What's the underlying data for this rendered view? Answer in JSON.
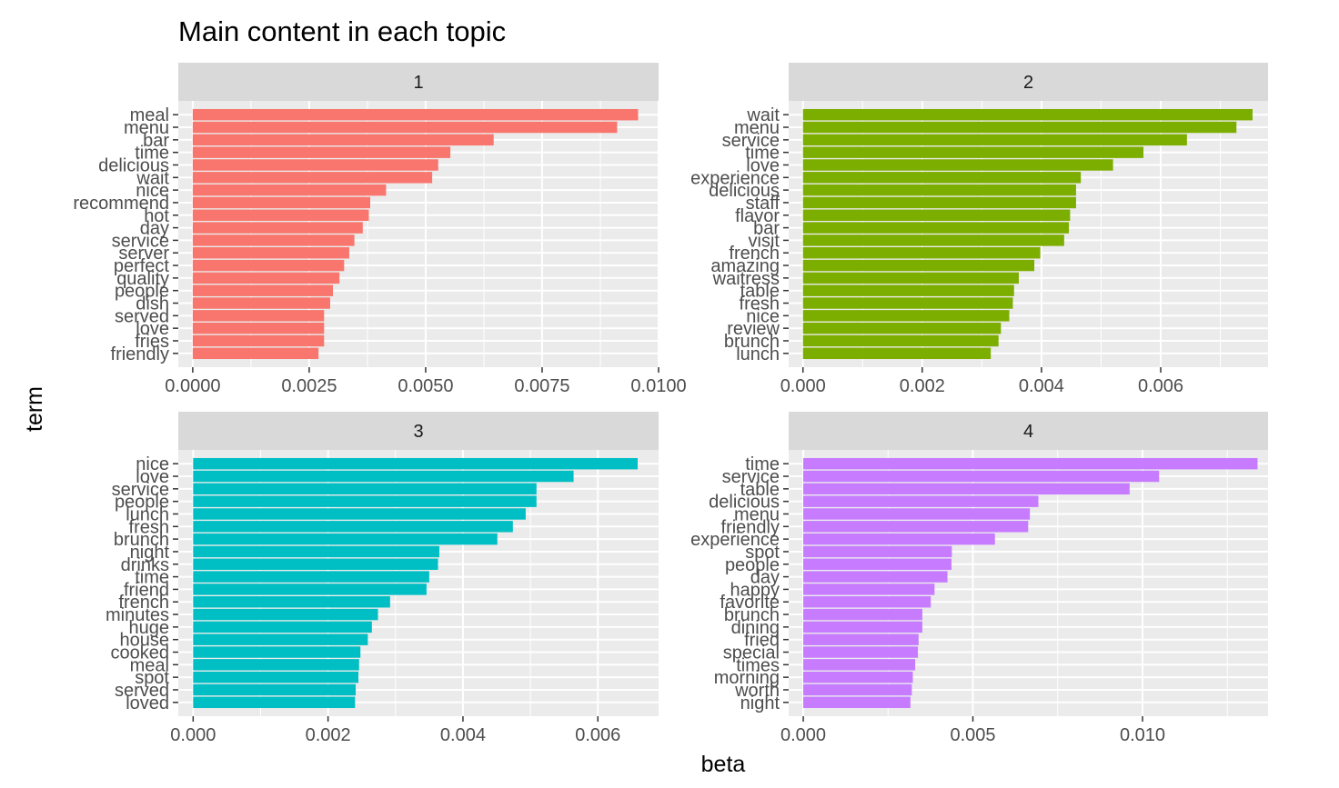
{
  "chart_data": {
    "type": "bar",
    "orientation": "horizontal",
    "title": "Main content in each topic",
    "xlabel": "beta",
    "ylabel": "term",
    "grid": true,
    "legend": "none",
    "panels": [
      {
        "strip_label": "1",
        "color": "#F8766D",
        "xlim": [
          -0.00031,
          0.01
        ],
        "x_ticks": [
          "0.0000",
          "0.0025",
          "0.0050",
          "0.0075",
          "0.0100"
        ],
        "x_tick_values": [
          0,
          0.0025,
          0.005,
          0.0075,
          0.01
        ],
        "categories": [
          "meal",
          "menu",
          "bar",
          "time",
          "delicious",
          "wait",
          "nice",
          "recommend",
          "hot",
          "day",
          "service",
          "server",
          "perfect",
          "quality",
          "people",
          "dish",
          "served",
          "love",
          "fries",
          "friendly"
        ],
        "values": [
          0.00956,
          0.00911,
          0.00646,
          0.00553,
          0.00527,
          0.00514,
          0.00415,
          0.00381,
          0.00378,
          0.00365,
          0.00347,
          0.00336,
          0.00325,
          0.00315,
          0.00301,
          0.00295,
          0.00282,
          0.00282,
          0.00282,
          0.0027
        ]
      },
      {
        "strip_label": "2",
        "color": "#7CAE00",
        "xlim": [
          -0.00024,
          0.0078
        ],
        "x_ticks": [
          "0.000",
          "0.002",
          "0.004",
          "0.006"
        ],
        "x_tick_values": [
          0,
          0.002,
          0.004,
          0.006
        ],
        "categories": [
          "wait",
          "menu",
          "service",
          "time",
          "love",
          "experience",
          "delicious",
          "staff",
          "flavor",
          "bar",
          "visit",
          "french",
          "amazing",
          "waitress",
          "table",
          "fresh",
          "nice",
          "review",
          "brunch",
          "lunch"
        ],
        "values": [
          0.00754,
          0.00727,
          0.00644,
          0.00571,
          0.0052,
          0.00466,
          0.00458,
          0.00458,
          0.00448,
          0.00446,
          0.00438,
          0.00398,
          0.00388,
          0.00362,
          0.00354,
          0.00352,
          0.00346,
          0.00332,
          0.00328,
          0.00315
        ]
      },
      {
        "strip_label": "3",
        "color": "#00BFC4",
        "xlim": [
          -0.00022,
          0.0069
        ],
        "x_ticks": [
          "0.000",
          "0.002",
          "0.004",
          "0.006"
        ],
        "x_tick_values": [
          0,
          0.002,
          0.004,
          0.006
        ],
        "categories": [
          "nice",
          "love",
          "service",
          "people",
          "lunch",
          "fresh",
          "brunch",
          "night",
          "drinks",
          "time",
          "friend",
          "french",
          "minutes",
          "huge",
          "house",
          "cooked",
          "meal",
          "spot",
          "served",
          "loved"
        ],
        "values": [
          0.00659,
          0.00564,
          0.00509,
          0.00509,
          0.00493,
          0.00474,
          0.00451,
          0.00365,
          0.00363,
          0.0035,
          0.00346,
          0.00292,
          0.00274,
          0.00265,
          0.00259,
          0.00248,
          0.00246,
          0.00245,
          0.00241,
          0.0024
        ]
      },
      {
        "strip_label": "4",
        "color": "#C77CFF",
        "xlim": [
          -0.00043,
          0.0137
        ],
        "x_ticks": [
          "0.000",
          "0.005",
          "0.010"
        ],
        "x_tick_values": [
          0,
          0.005,
          0.01
        ],
        "categories": [
          "time",
          "service",
          "table",
          "delicious",
          "menu",
          "friendly",
          "experience",
          "spot",
          "people",
          "day",
          "happy",
          "favorite",
          "brunch",
          "dining",
          "fried",
          "special",
          "times",
          "morning",
          "worth",
          "night"
        ],
        "values": [
          0.01339,
          0.01049,
          0.00962,
          0.00693,
          0.00668,
          0.00663,
          0.00565,
          0.00438,
          0.00437,
          0.00425,
          0.00387,
          0.00376,
          0.00351,
          0.00351,
          0.0034,
          0.00338,
          0.0033,
          0.00323,
          0.0032,
          0.00316
        ]
      }
    ]
  }
}
